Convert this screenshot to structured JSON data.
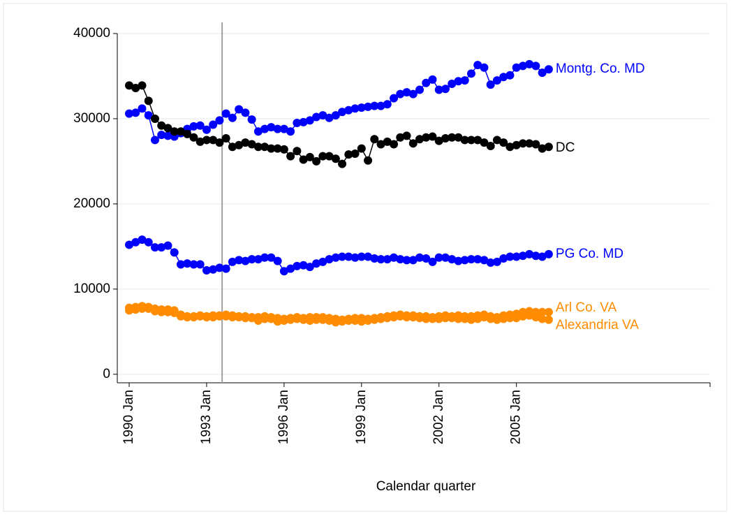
{
  "chart_data": {
    "type": "line",
    "x_label": "Calendar quarter",
    "x": [
      1990,
      1990.25,
      1990.5,
      1990.75,
      1991,
      1991.25,
      1991.5,
      1991.75,
      1992,
      1992.25,
      1992.5,
      1992.75,
      1993,
      1993.25,
      1993.5,
      1993.75,
      1994,
      1994.25,
      1994.5,
      1994.75,
      1995,
      1995.25,
      1995.5,
      1995.75,
      1996,
      1996.25,
      1996.5,
      1996.75,
      1997,
      1997.25,
      1997.5,
      1997.75,
      1998,
      1998.25,
      1998.5,
      1998.75,
      1999,
      1999.25,
      1999.5,
      1999.75,
      2000,
      2000.25,
      2000.5,
      2000.75,
      2001,
      2001.25,
      2001.5,
      2001.75,
      2002,
      2002.25,
      2002.5,
      2002.75,
      2003,
      2003.25,
      2003.5,
      2003.75,
      2004,
      2004.25,
      2004.5,
      2004.75,
      2005,
      2005.25,
      2005.5,
      2005.75,
      2006,
      2006.25
    ],
    "series": [
      {
        "name": "Montg. Co. MD",
        "color": "#0000ff",
        "values": [
          30600,
          30700,
          31200,
          30400,
          27500,
          28100,
          28000,
          27900,
          28300,
          28800,
          29100,
          29200,
          28700,
          29300,
          29800,
          30600,
          30100,
          31100,
          30700,
          29900,
          28500,
          28800,
          29000,
          28800,
          28800,
          28500,
          29500,
          29600,
          29800,
          30200,
          30400,
          30100,
          30400,
          30800,
          31000,
          31200,
          31300,
          31400,
          31500,
          31500,
          31700,
          32400,
          32900,
          33100,
          32900,
          33400,
          34200,
          34600,
          33400,
          33500,
          34100,
          34400,
          34500,
          35300,
          36300,
          36000,
          34000,
          34500,
          34900,
          35100,
          36000,
          36200,
          36400,
          36200,
          35400,
          35800
        ]
      },
      {
        "name": "DC",
        "color": "#000000",
        "values": [
          33900,
          33600,
          33900,
          32100,
          30000,
          29200,
          28900,
          28500,
          28500,
          28200,
          27800,
          27300,
          27500,
          27500,
          27200,
          27700,
          26700,
          26900,
          27200,
          27000,
          26700,
          26700,
          26500,
          26500,
          26400,
          25600,
          26200,
          25200,
          25500,
          25000,
          25600,
          25600,
          25300,
          24700,
          25800,
          25900,
          26500,
          25100,
          27600,
          27000,
          27300,
          27000,
          27800,
          28000,
          27100,
          27600,
          27800,
          27900,
          27400,
          27700,
          27800,
          27800,
          27500,
          27500,
          27500,
          27200,
          26800,
          27500,
          27200,
          26700,
          26900,
          27100,
          27100,
          27000,
          26500,
          26700
        ]
      },
      {
        "name": "PG Co. MD",
        "color": "#0000ff",
        "values": [
          15200,
          15500,
          15800,
          15500,
          14900,
          14900,
          15100,
          14300,
          12900,
          13000,
          12900,
          12900,
          12200,
          12300,
          12500,
          12400,
          13200,
          13400,
          13300,
          13500,
          13500,
          13700,
          13700,
          13300,
          12100,
          12400,
          12700,
          12800,
          12600,
          13000,
          13200,
          13500,
          13700,
          13800,
          13800,
          13700,
          13800,
          13800,
          13600,
          13500,
          13500,
          13700,
          13500,
          13400,
          13400,
          13700,
          13600,
          13200,
          13700,
          13700,
          13500,
          13300,
          13400,
          13500,
          13500,
          13400,
          13100,
          13200,
          13600,
          13800,
          13800,
          13900,
          14100,
          13900,
          13800,
          14100
        ]
      },
      {
        "name": "Arl Co. VA",
        "color": "#ff8c00",
        "values": [
          7800,
          7900,
          8000,
          7900,
          7700,
          7600,
          7600,
          7500,
          7000,
          6800,
          6800,
          6900,
          6800,
          6900,
          6900,
          7000,
          6900,
          6800,
          6800,
          6700,
          6700,
          6800,
          6700,
          6600,
          6500,
          6600,
          6700,
          6600,
          6700,
          6700,
          6700,
          6600,
          6500,
          6400,
          6500,
          6600,
          6600,
          6500,
          6600,
          6700,
          6800,
          6900,
          7000,
          6900,
          6900,
          6800,
          6800,
          6700,
          6800,
          6900,
          6800,
          6900,
          6800,
          6800,
          6900,
          7000,
          6800,
          6700,
          6900,
          7000,
          7100,
          7300,
          7400,
          7300,
          7300,
          7300
        ]
      },
      {
        "name": "Alexandria VA",
        "color": "#ff8c00",
        "values": [
          7500,
          7600,
          7700,
          7700,
          7400,
          7300,
          7300,
          7200,
          6800,
          6700,
          6700,
          6800,
          6700,
          6700,
          6800,
          6800,
          6700,
          6700,
          6600,
          6600,
          6300,
          6500,
          6500,
          6200,
          6300,
          6400,
          6500,
          6400,
          6300,
          6400,
          6400,
          6300,
          6100,
          6200,
          6300,
          6300,
          6200,
          6300,
          6400,
          6500,
          6600,
          6700,
          6800,
          6700,
          6700,
          6600,
          6500,
          6500,
          6500,
          6600,
          6600,
          6500,
          6500,
          6400,
          6500,
          6700,
          6500,
          6400,
          6500,
          6600,
          6600,
          6800,
          6900,
          6700,
          6500,
          6400
        ]
      }
    ],
    "xlim": [
      1989.54,
      2012.5
    ],
    "xticks": [
      {
        "value": 1990,
        "label": "1990 Jan"
      },
      {
        "value": 1993,
        "label": "1993 Jan"
      },
      {
        "value": 1996,
        "label": "1996 Jan"
      },
      {
        "value": 1999,
        "label": "1999 Jan"
      },
      {
        "value": 2002,
        "label": "2002 Jan"
      },
      {
        "value": 2005,
        "label": "2005 Jan"
      }
    ],
    "ylim": [
      -1000,
      40000
    ],
    "yticks": [
      0,
      10000,
      20000,
      30000,
      40000
    ],
    "xline": 1993.6,
    "grid": true
  }
}
